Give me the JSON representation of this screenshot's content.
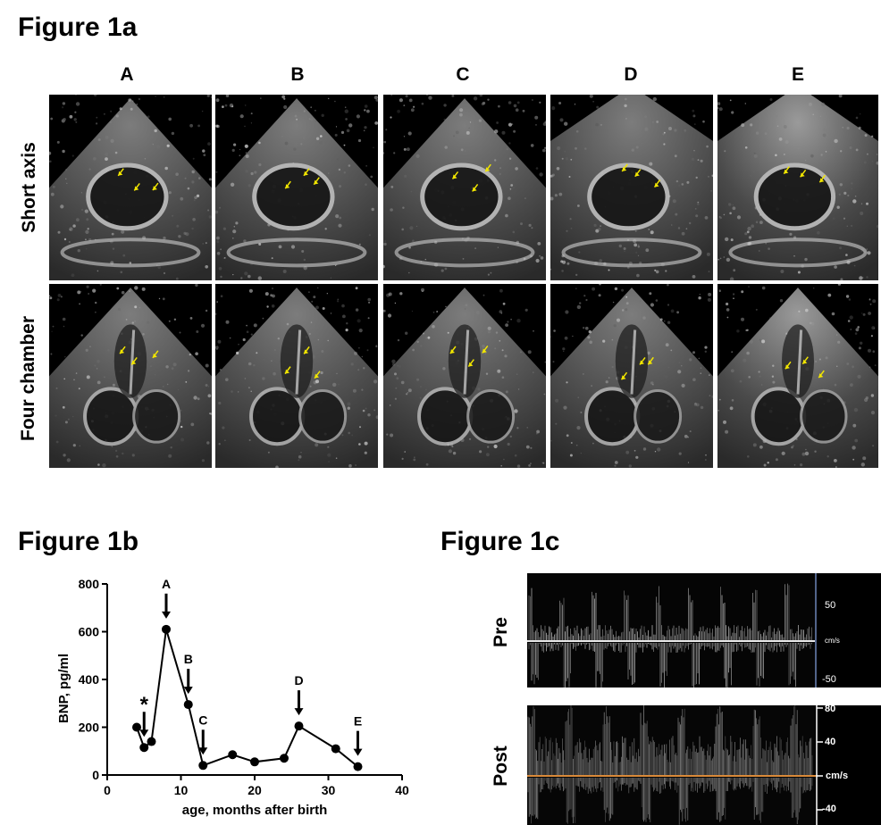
{
  "figure_1a": {
    "title": "Figure 1a",
    "columns": [
      "A",
      "B",
      "C",
      "D",
      "E"
    ],
    "rows": [
      "Short axis",
      "Four chamber"
    ]
  },
  "figure_1b": {
    "title": "Figure 1b"
  },
  "figure_1c": {
    "title": "Figure 1c",
    "pre": {
      "label": "Pre",
      "ticks": [
        "50",
        "cm/s",
        "-50"
      ]
    },
    "post": {
      "label": "Post",
      "ticks": [
        "80",
        "40",
        "cm/s",
        "-40"
      ]
    }
  },
  "chart_data": {
    "type": "line",
    "title": "",
    "xlabel": "age, months after birth",
    "ylabel": "BNP, pg/ml",
    "xlim": [
      0,
      40
    ],
    "ylim": [
      0,
      800
    ],
    "x_ticks": [
      0,
      10,
      20,
      30,
      40
    ],
    "y_ticks": [
      0,
      200,
      400,
      600,
      800
    ],
    "grid": false,
    "series": [
      {
        "x": [
          4,
          5,
          6,
          8,
          11,
          13,
          17,
          20,
          24,
          26,
          31,
          34
        ],
        "y": [
          200,
          115,
          140,
          610,
          295,
          40,
          85,
          55,
          70,
          205,
          110,
          35
        ]
      }
    ],
    "annotations": [
      {
        "text": "*",
        "x": 5,
        "y": 115
      },
      {
        "text": "A",
        "x": 8,
        "y": 610
      },
      {
        "text": "B",
        "x": 11,
        "y": 295
      },
      {
        "text": "C",
        "x": 13,
        "y": 40
      },
      {
        "text": "D",
        "x": 26,
        "y": 205
      },
      {
        "text": "E",
        "x": 34,
        "y": 35
      }
    ]
  }
}
